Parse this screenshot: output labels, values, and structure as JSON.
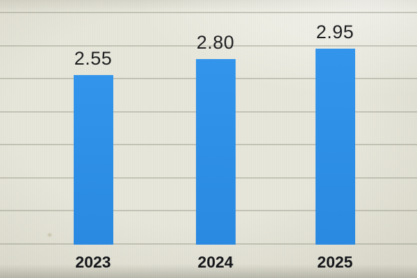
{
  "chart_data": {
    "type": "bar",
    "title": "",
    "categories": [
      "2023",
      "2024",
      "2025"
    ],
    "values": [
      2.55,
      2.8,
      2.95
    ],
    "value_labels": [
      "2.55",
      "2.80",
      "2.95"
    ],
    "xlabel": "",
    "ylabel": "",
    "ylim": [
      0,
      3.5
    ],
    "grid_step": 0.5,
    "gridlines": "horizontal",
    "legend": "none",
    "colors": {
      "bar": "#2b8fe6",
      "bar_gradient_top": "#3295eb",
      "bar_gradient_bottom": "#2a89e1",
      "background": "#e7e6da",
      "gridline": "rgba(139,143,124,0.40)",
      "value_label": "#1e1f21",
      "category_label": "#15161a"
    }
  }
}
